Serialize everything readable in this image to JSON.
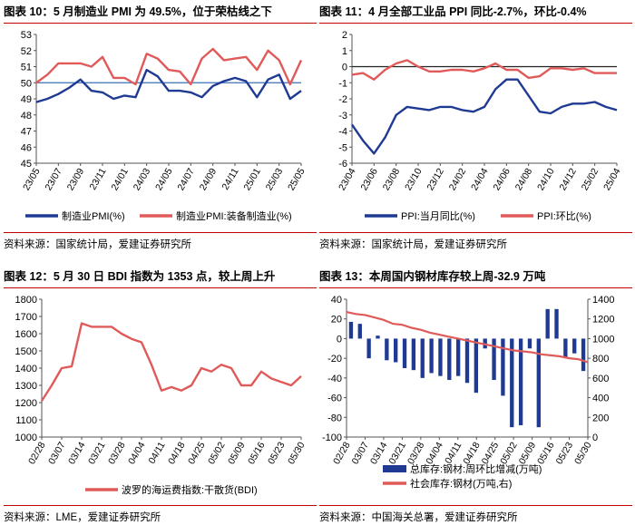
{
  "panels": [
    {
      "title": "图表 10：5 月制造业 PMI 为 49.5%，位于荣枯线之下",
      "source": "资料来源：国家统计局，爱建证券研究所",
      "chart_data": {
        "type": "line",
        "ylim": [
          45,
          53
        ],
        "yticks": [
          "45",
          "46",
          "47",
          "48",
          "49",
          "50",
          "51",
          "52",
          "53"
        ],
        "xticks": [
          "23/05",
          "23/07",
          "23/09",
          "23/11",
          "24/01",
          "24/03",
          "24/05",
          "24/07",
          "24/09",
          "24/11",
          "25/01",
          "25/03",
          "25/05"
        ],
        "reference_line": 50,
        "x": [
          0,
          1,
          2,
          3,
          4,
          5,
          6,
          7,
          8,
          9,
          10,
          11,
          12,
          13,
          14,
          15,
          16,
          17,
          18,
          19,
          20,
          21,
          22,
          23,
          24
        ],
        "series": [
          {
            "name": "制造业PMI(%)",
            "color": "#1f3a93",
            "values": [
              48.8,
              49.0,
              49.3,
              49.7,
              50.2,
              49.5,
              49.4,
              49.0,
              49.2,
              49.1,
              50.8,
              50.4,
              49.5,
              49.5,
              49.4,
              49.1,
              49.8,
              50.1,
              50.3,
              50.1,
              49.1,
              50.2,
              50.5,
              49.0,
              49.5
            ]
          },
          {
            "name": "制造业PMI:装备制造业(%)",
            "color": "#e05a5a",
            "values": [
              50.0,
              50.5,
              51.2,
              51.2,
              51.2,
              51.0,
              51.6,
              50.3,
              50.3,
              49.9,
              51.8,
              51.5,
              50.8,
              50.7,
              49.9,
              51.5,
              52.1,
              51.4,
              51.5,
              51.6,
              50.8,
              52.0,
              51.4,
              49.9,
              51.4
            ]
          }
        ]
      }
    },
    {
      "title": "图表 11：4 月全部工业品 PPI 同比-2.7%，环比-0.4%",
      "source": "资料来源：国家统计局，爱建证券研究所",
      "chart_data": {
        "type": "line",
        "ylim": [
          -6,
          2
        ],
        "yticks": [
          "-6",
          "-5",
          "-4",
          "-3",
          "-2",
          "-1",
          "0",
          "1",
          "2"
        ],
        "xticks": [
          "23/04",
          "23/06",
          "23/08",
          "23/10",
          "23/12",
          "24/02",
          "24/04",
          "24/06",
          "24/08",
          "24/10",
          "24/12",
          "25/02",
          "25/04"
        ],
        "reference_line": 0,
        "x": [
          0,
          1,
          2,
          3,
          4,
          5,
          6,
          7,
          8,
          9,
          10,
          11,
          12,
          13,
          14,
          15,
          16,
          17,
          18,
          19,
          20,
          21,
          22,
          23,
          24
        ],
        "series": [
          {
            "name": "PPI:当月同比(%)",
            "color": "#1f3a93",
            "values": [
              -3.6,
              -4.6,
              -5.4,
              -4.4,
              -3.0,
              -2.5,
              -2.6,
              -2.7,
              -2.5,
              -2.5,
              -2.7,
              -2.8,
              -2.5,
              -1.4,
              -0.8,
              -0.8,
              -1.8,
              -2.8,
              -2.9,
              -2.5,
              -2.3,
              -2.3,
              -2.2,
              -2.5,
              -2.7
            ]
          },
          {
            "name": "PPI:环比(%)",
            "color": "#e05a5a",
            "values": [
              -0.5,
              -0.4,
              -0.8,
              -0.2,
              0.2,
              0.4,
              0.0,
              -0.3,
              -0.3,
              -0.2,
              -0.2,
              -0.3,
              -0.1,
              0.2,
              -0.2,
              -0.2,
              -0.7,
              -0.6,
              -0.1,
              -0.1,
              -0.2,
              -0.1,
              -0.4,
              -0.4,
              -0.4
            ]
          }
        ]
      }
    },
    {
      "title": "图表 12：5 月 30 日 BDI 指数为 1353 点，较上周上升",
      "source": "资料来源：LME，爱建证券研究所",
      "chart_data": {
        "type": "line",
        "ylim": [
          1000,
          1800
        ],
        "yticks": [
          "1000",
          "1100",
          "1200",
          "1300",
          "1400",
          "1500",
          "1600",
          "1700",
          "1800"
        ],
        "xticks": [
          "02/28",
          "03/07",
          "03/14",
          "03/21",
          "03/28",
          "04/04",
          "04/11",
          "04/18",
          "04/25",
          "05/02",
          "05/09",
          "05/16",
          "05/23",
          "05/30"
        ],
        "x": [
          0,
          0.5,
          1,
          1.5,
          2,
          2.5,
          3,
          3.5,
          4,
          4.5,
          5,
          5.5,
          6,
          6.5,
          7,
          7.5,
          8,
          8.5,
          9,
          9.5,
          10,
          10.5,
          11,
          11.5,
          12,
          12.5,
          13
        ],
        "series": [
          {
            "name": "波罗的海运费指数:干散货(BDI)",
            "color": "#e05a5a",
            "values": [
              1210,
              1300,
              1400,
              1410,
              1660,
              1640,
              1640,
              1640,
              1600,
              1570,
              1550,
              1420,
              1270,
              1290,
              1270,
              1300,
              1400,
              1380,
              1420,
              1400,
              1300,
              1300,
              1380,
              1340,
              1320,
              1300,
              1353
            ]
          }
        ]
      }
    },
    {
      "title": "图表 13：本周国内钢材库存较上周-32.9 万吨",
      "source": "资料来源：中国海关总署，爱建证券研究所",
      "chart_data": {
        "type": "bar",
        "ylim": [
          -100,
          40
        ],
        "yticks": [
          "-100",
          "-80",
          "-60",
          "-40",
          "-20",
          "0",
          "20",
          "40"
        ],
        "y2lim": [
          0,
          1400
        ],
        "y2ticks": [
          "0",
          "200",
          "400",
          "600",
          "800",
          "1000",
          "1200",
          "1400"
        ],
        "xticks": [
          "02/28",
          "03/07",
          "03/14",
          "03/21",
          "03/28",
          "04/04",
          "04/11",
          "04/18",
          "04/25",
          "05/02",
          "05/09",
          "05/16",
          "05/23",
          "05/30"
        ],
        "series": [
          {
            "name": "总库存:钢材:周环比增减(万吨)",
            "color": "#1f3a93",
            "kind": "bar",
            "values": [
              17,
              15,
              -20,
              3,
              -22,
              -24,
              -30,
              -32,
              -40,
              -35,
              -38,
              -42,
              -38,
              -45,
              -55,
              -10,
              -42,
              -58,
              -90,
              -88,
              -10,
              -90,
              30,
              30,
              -20,
              -15,
              -32.9
            ]
          },
          {
            "name": "社会库存:钢材(万吨,右)",
            "color": "#e05a5a",
            "kind": "line",
            "axis": "right",
            "values": [
              1270,
              1250,
              1240,
              1215,
              1190,
              1150,
              1140,
              1110,
              1090,
              1060,
              1040,
              1020,
              1000,
              980,
              960,
              940,
              920,
              900,
              880,
              870,
              860,
              840,
              830,
              820,
              800,
              790,
              760
            ]
          }
        ]
      }
    }
  ]
}
